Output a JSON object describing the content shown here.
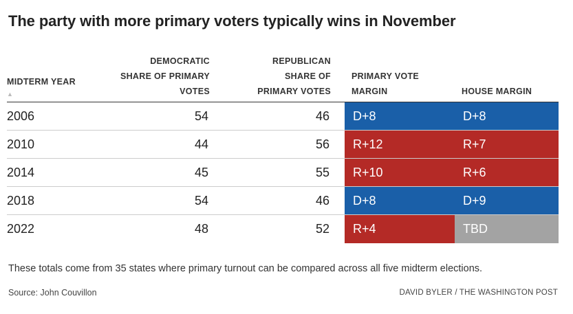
{
  "title": "The party with more primary voters typically wins in November",
  "headers": {
    "year_line1": "MIDTERM YEAR",
    "dem_line1": "DEMOCRATIC",
    "dem_line2": "SHARE OF PRIMARY",
    "dem_line3": "VOTES",
    "rep_line1": "REPUBLICAN",
    "rep_line2": "SHARE OF",
    "rep_line3": "PRIMARY VOTES",
    "primary_line1": "PRIMARY VOTE",
    "primary_line2": "MARGIN",
    "house_line1": "HOUSE MARGIN",
    "sort_glyph": "▲"
  },
  "colors": {
    "dem": "#1a5fa8",
    "rep": "#b42a26",
    "tbd": "#a3a3a3"
  },
  "chart_data": {
    "type": "table",
    "columns": [
      "MIDTERM YEAR",
      "DEMOCRATIC SHARE OF PRIMARY VOTES",
      "REPUBLICAN SHARE OF PRIMARY VOTES",
      "PRIMARY VOTE MARGIN",
      "HOUSE MARGIN"
    ],
    "rows": [
      {
        "year": "2006",
        "dem": "54",
        "rep": "46",
        "primary": "D+8",
        "primary_party": "dem",
        "house": "D+8",
        "house_party": "dem"
      },
      {
        "year": "2010",
        "dem": "44",
        "rep": "56",
        "primary": "R+12",
        "primary_party": "rep",
        "house": "R+7",
        "house_party": "rep"
      },
      {
        "year": "2014",
        "dem": "45",
        "rep": "55",
        "primary": "R+10",
        "primary_party": "rep",
        "house": "R+6",
        "house_party": "rep"
      },
      {
        "year": "2018",
        "dem": "54",
        "rep": "46",
        "primary": "D+8",
        "primary_party": "dem",
        "house": "D+9",
        "house_party": "dem"
      },
      {
        "year": "2022",
        "dem": "48",
        "rep": "52",
        "primary": "R+4",
        "primary_party": "rep",
        "house": "TBD",
        "house_party": "tbd"
      }
    ]
  },
  "footnote": "These totals come from 35 states where primary turnout can be compared across all five midterm elections.",
  "source": "Source: John Couvillon",
  "credit": "DAVID BYLER / THE WASHINGTON POST"
}
